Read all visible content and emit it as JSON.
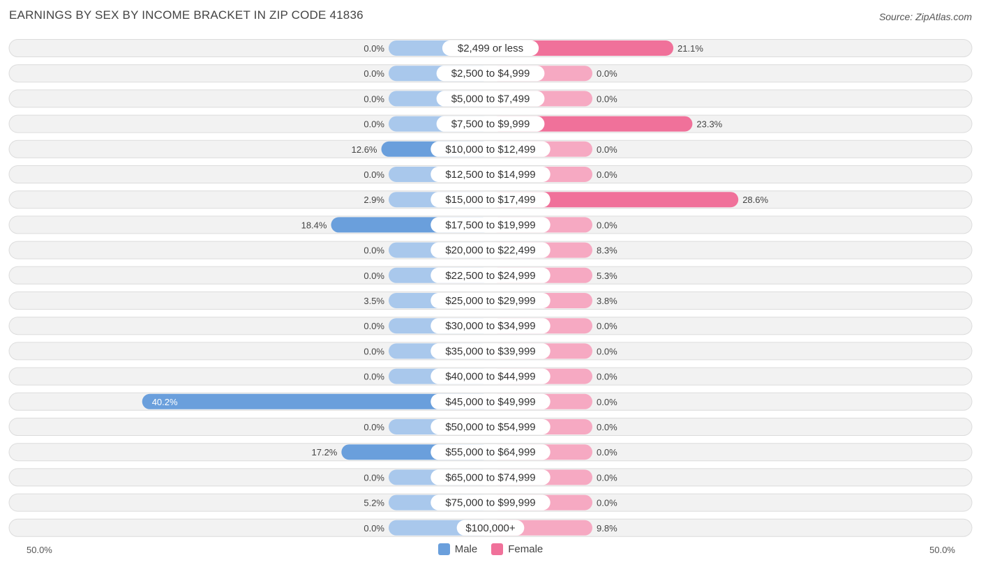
{
  "title": "EARNINGS BY SEX BY INCOME BRACKET IN ZIP CODE 41836",
  "source": "Source: ZipAtlas.com",
  "axis": {
    "left_label": "50.0%",
    "right_label": "50.0%"
  },
  "legend": [
    {
      "name": "Male",
      "color": "#6a9fdc"
    },
    {
      "name": "Female",
      "color": "#f0719a"
    }
  ],
  "colors": {
    "male_strong": "#6a9fdc",
    "male_light": "#a9c8ec",
    "female_strong": "#f0719a",
    "female_light": "#f6a9c2"
  },
  "chart_data": {
    "type": "bar",
    "orientation": "horizontal-diverging",
    "title": "EARNINGS BY SEX BY INCOME BRACKET IN ZIP CODE 41836",
    "xlim": [
      -50,
      50
    ],
    "categories": [
      "$2,499 or less",
      "$2,500 to $4,999",
      "$5,000 to $7,499",
      "$7,500 to $9,999",
      "$10,000 to $12,499",
      "$12,500 to $14,999",
      "$15,000 to $17,499",
      "$17,500 to $19,999",
      "$20,000 to $22,499",
      "$22,500 to $24,999",
      "$25,000 to $29,999",
      "$30,000 to $34,999",
      "$35,000 to $39,999",
      "$40,000 to $44,999",
      "$45,000 to $49,999",
      "$50,000 to $54,999",
      "$55,000 to $64,999",
      "$65,000 to $74,999",
      "$75,000 to $99,999",
      "$100,000+"
    ],
    "series": [
      {
        "name": "Male",
        "values": [
          0.0,
          0.0,
          0.0,
          0.0,
          12.6,
          0.0,
          2.9,
          18.4,
          0.0,
          0.0,
          3.5,
          0.0,
          0.0,
          0.0,
          40.2,
          0.0,
          17.2,
          0.0,
          5.2,
          0.0
        ],
        "labels": [
          "0.0%",
          "0.0%",
          "0.0%",
          "0.0%",
          "12.6%",
          "0.0%",
          "2.9%",
          "18.4%",
          "0.0%",
          "0.0%",
          "3.5%",
          "0.0%",
          "0.0%",
          "0.0%",
          "40.2%",
          "0.0%",
          "17.2%",
          "0.0%",
          "5.2%",
          "0.0%"
        ]
      },
      {
        "name": "Female",
        "values": [
          21.1,
          0.0,
          0.0,
          23.3,
          0.0,
          0.0,
          28.6,
          0.0,
          8.3,
          5.3,
          3.8,
          0.0,
          0.0,
          0.0,
          0.0,
          0.0,
          0.0,
          0.0,
          0.0,
          9.8
        ],
        "labels": [
          "21.1%",
          "0.0%",
          "0.0%",
          "23.3%",
          "0.0%",
          "0.0%",
          "28.6%",
          "0.0%",
          "8.3%",
          "5.3%",
          "3.8%",
          "0.0%",
          "0.0%",
          "0.0%",
          "0.0%",
          "0.0%",
          "0.0%",
          "0.0%",
          "0.0%",
          "9.8%"
        ]
      }
    ]
  }
}
